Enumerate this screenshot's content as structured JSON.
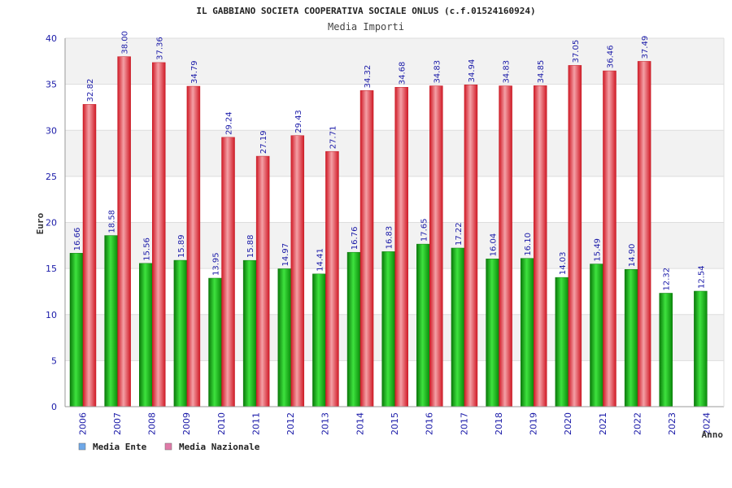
{
  "chart_data": {
    "type": "bar",
    "title": "IL GABBIANO SOCIETA COOPERATIVA SOCIALE ONLUS (c.f.01524160924)",
    "subtitle": "Media Importi",
    "xlabel": "Anno",
    "ylabel": "Euro",
    "ylim": [
      0,
      40
    ],
    "yticks": [
      0,
      5,
      10,
      15,
      20,
      25,
      30,
      35,
      40
    ],
    "grid": true,
    "legend_position": "bottom-left",
    "categories": [
      "2006",
      "2007",
      "2008",
      "2009",
      "2010",
      "2011",
      "2012",
      "2013",
      "2014",
      "2015",
      "2016",
      "2017",
      "2018",
      "2019",
      "2020",
      "2021",
      "2022",
      "2023",
      "2024"
    ],
    "series": [
      {
        "name": "Media Ente",
        "color": "#13b013",
        "legend_color": "#6fa8e8",
        "values": [
          16.66,
          18.58,
          15.56,
          15.89,
          13.95,
          15.88,
          14.97,
          14.41,
          16.76,
          16.83,
          17.65,
          17.22,
          16.04,
          16.1,
          14.03,
          15.49,
          14.9,
          12.32,
          12.54
        ],
        "labels": [
          "16.66",
          "18.58",
          "15.56",
          "15.89",
          "13.95",
          "15.88",
          "14.97",
          "14.41",
          "16.76",
          "16.83",
          "17.65",
          "17.22",
          "16.04",
          "16.10",
          "14.03",
          "15.49",
          "14.90",
          "12.32",
          "12.54"
        ]
      },
      {
        "name": "Media Nazionale",
        "color": "#e8303c",
        "legend_color": "#e07aa8",
        "values": [
          32.82,
          38.0,
          37.36,
          34.79,
          29.24,
          27.19,
          29.43,
          27.71,
          34.32,
          34.68,
          34.83,
          34.94,
          34.83,
          34.85,
          37.05,
          36.46,
          37.49,
          null,
          null
        ],
        "labels": [
          "32.82",
          "38.00",
          "37.36",
          "34.79",
          "29.24",
          "27.19",
          "29.43",
          "27.71",
          "34.32",
          "34.68",
          "34.83",
          "34.94",
          "34.83",
          "34.85",
          "37.05",
          "36.46",
          "37.49",
          "",
          ""
        ]
      }
    ]
  }
}
